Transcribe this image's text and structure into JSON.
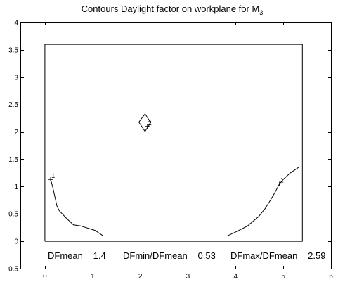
{
  "chart_data": {
    "type": "line",
    "title": "Contours Daylight factor on workplane  for M",
    "title_subscript": "3",
    "xlim": [
      -0.5,
      6
    ],
    "ylim": [
      -0.5,
      4
    ],
    "xticks": [
      0,
      1,
      2,
      3,
      4,
      5,
      6
    ],
    "yticks": [
      -0.5,
      0,
      0.5,
      1,
      1.5,
      2,
      2.5,
      3,
      3.5,
      4
    ],
    "xtick_labels": [
      "0",
      "1",
      "2",
      "3",
      "4",
      "5",
      "6"
    ],
    "ytick_labels": [
      "-0.5",
      "0",
      "0.5",
      "1",
      "1.5",
      "2",
      "2.5",
      "3",
      "3.5",
      "4"
    ],
    "room_outline": {
      "x": [
        0,
        5.4,
        5.4,
        0,
        0
      ],
      "y": [
        0,
        0,
        3.6,
        3.6,
        0
      ]
    },
    "contours": [
      {
        "label": "1",
        "label_at": [
          0.12,
          1.13
        ],
        "x": [
          0.12,
          0.16,
          0.2,
          0.25,
          0.3,
          0.45,
          0.6,
          0.75,
          1.05,
          1.22
        ],
        "y": [
          1.13,
          1.0,
          0.85,
          0.65,
          0.56,
          0.42,
          0.3,
          0.28,
          0.2,
          0.1
        ]
      },
      {
        "label": "1",
        "label_at": [
          4.92,
          1.05
        ],
        "x": [
          3.83,
          4.0,
          4.25,
          4.48,
          4.62,
          4.73,
          4.83,
          4.92,
          5.02,
          5.15,
          5.32
        ],
        "y": [
          0.1,
          0.17,
          0.28,
          0.45,
          0.6,
          0.75,
          0.9,
          1.05,
          1.15,
          1.25,
          1.35
        ]
      },
      {
        "label": "2",
        "label_at": [
          2.15,
          2.1
        ],
        "x": [
          2.1,
          2.22,
          2.1,
          1.97,
          2.1
        ],
        "y": [
          2.33,
          2.17,
          2.01,
          2.18,
          2.33
        ]
      }
    ],
    "annotations": [
      {
        "text": "DFmean =  1.4"
      },
      {
        "text": "DFmin/DFmean = 0.53"
      },
      {
        "text": "DFmax/DFmean =  2.59"
      }
    ],
    "grid": false,
    "legend": "none"
  }
}
